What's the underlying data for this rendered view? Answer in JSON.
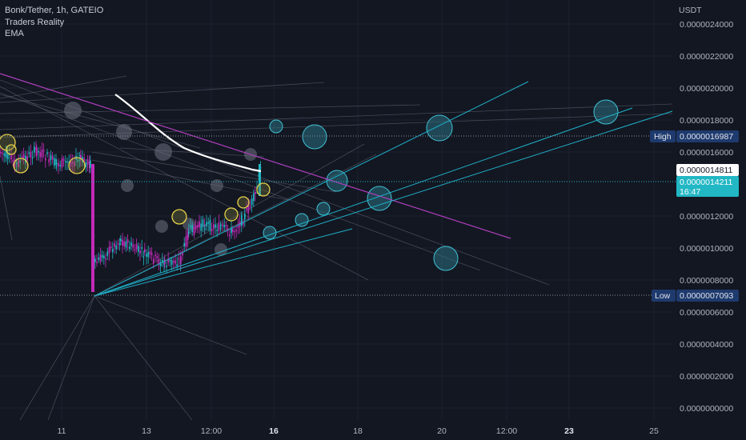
{
  "legend": {
    "symbol_line": "Bonk/Tether, 1h, GATEIO",
    "indicator1": "Traders Reality",
    "indicator2": "EMA"
  },
  "chart_data": {
    "type": "candlestick",
    "currency_label": "USDT",
    "y_range": [
      -3e-10,
      2.55e-08
    ],
    "y_ticks": [
      "0.0000024000",
      "0.0000022000",
      "0.0000020000",
      "0.0000018000",
      "0.0000016000",
      "0.0000012000",
      "0.0000010000",
      "0.0000008000",
      "0.0000006000",
      "0.0000004000",
      "0.0000002000",
      "0.0000000000"
    ],
    "x_ticks": [
      {
        "label": "11",
        "bold": false
      },
      {
        "label": "13",
        "bold": false
      },
      {
        "label": "12:00",
        "bold": false
      },
      {
        "label": "16",
        "bold": true
      },
      {
        "label": "18",
        "bold": false
      },
      {
        "label": "20",
        "bold": false
      },
      {
        "label": "12:00",
        "bold": false
      },
      {
        "label": "23",
        "bold": true
      },
      {
        "label": "25",
        "bold": false
      }
    ],
    "markers": {
      "high": {
        "label": "High",
        "value": "0.0000016987"
      },
      "low": {
        "label": "Low",
        "value": "0.0000007093"
      },
      "last": {
        "value": "0.0000014811"
      },
      "current": {
        "value": "0.0000014211",
        "countdown": "16:47"
      }
    },
    "colors": {
      "background": "#131722",
      "up": "#22b7c4",
      "down": "#c32bb8",
      "ema": "#ffffff",
      "trendline": "#b03fbd",
      "fan": "#1fb0c8",
      "grid": "#1e2230",
      "high_marker": "#2962ff",
      "current": "#22b7c4"
    }
  }
}
